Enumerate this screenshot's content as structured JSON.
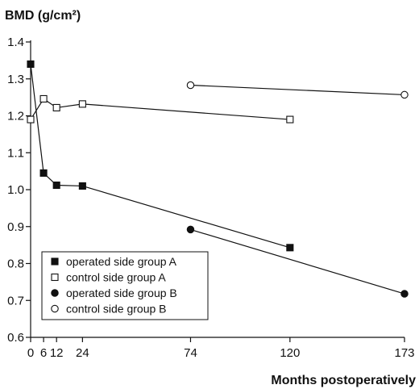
{
  "chart_data": {
    "type": "line",
    "title": "",
    "ylabel": "BMD (g/cm²)",
    "xlabel": "Months postoperatively",
    "ylim": [
      0.6,
      1.4
    ],
    "xlim": [
      0,
      173
    ],
    "yticks": [
      "0.6",
      "0.7",
      "0.8",
      "0.9",
      "1.0",
      "1.1",
      "1.2",
      "1.3",
      "1.4"
    ],
    "xticks": [
      "0",
      "6",
      "12",
      "24",
      "74",
      "120",
      "173"
    ],
    "grid": false,
    "legend_position": "bottom-left",
    "series": [
      {
        "name": "operated side group A",
        "marker": "filled-square",
        "x": [
          0,
          6,
          12,
          24,
          120
        ],
        "y": [
          1.34,
          1.045,
          1.012,
          1.01,
          0.843
        ]
      },
      {
        "name": "control side group A",
        "marker": "open-square",
        "x": [
          0,
          6,
          12,
          24,
          120
        ],
        "y": [
          1.19,
          1.246,
          1.222,
          1.232,
          1.19
        ]
      },
      {
        "name": "operated  side group B",
        "marker": "filled-circle",
        "x": [
          74,
          173
        ],
        "y": [
          0.892,
          0.718
        ]
      },
      {
        "name": "control  side group B",
        "marker": "open-circle",
        "x": [
          74,
          173
        ],
        "y": [
          1.283,
          1.257
        ]
      }
    ]
  }
}
